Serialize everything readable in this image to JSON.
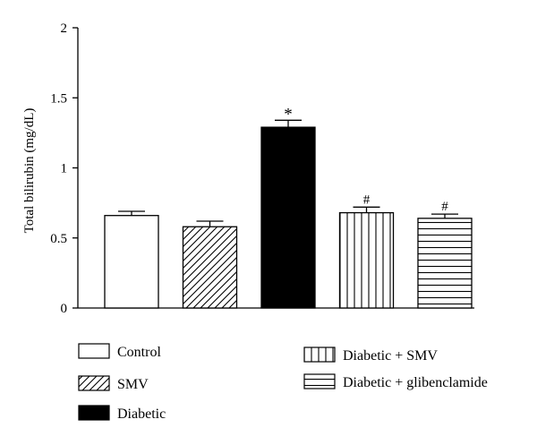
{
  "chart_data": {
    "type": "bar",
    "title": "",
    "xlabel": "",
    "ylabel": "Total bilirubin (mg/dL)",
    "ylim": [
      0,
      2
    ],
    "yticks": [
      0,
      0.5,
      1,
      1.5,
      2
    ],
    "ytick_labels": [
      "0",
      "0.5",
      "1",
      "1.5",
      "2"
    ],
    "categories": [
      "Control",
      "SMV",
      "Diabetic",
      "Diabetic + SMV",
      "Diabetic + glibenclamide"
    ],
    "values": [
      0.66,
      0.58,
      1.29,
      0.68,
      0.64
    ],
    "errors": [
      0.03,
      0.04,
      0.05,
      0.04,
      0.03
    ],
    "annotations": [
      "",
      "",
      "*",
      "#",
      "#"
    ],
    "fills": [
      "white",
      "diagonal-hatch",
      "solid-black",
      "vertical-hatch",
      "horizontal-hatch"
    ],
    "grid": false,
    "legend_position": "bottom",
    "colors": {
      "bar_edge": "#000000",
      "solid": "#000000",
      "background": "#ffffff"
    }
  }
}
